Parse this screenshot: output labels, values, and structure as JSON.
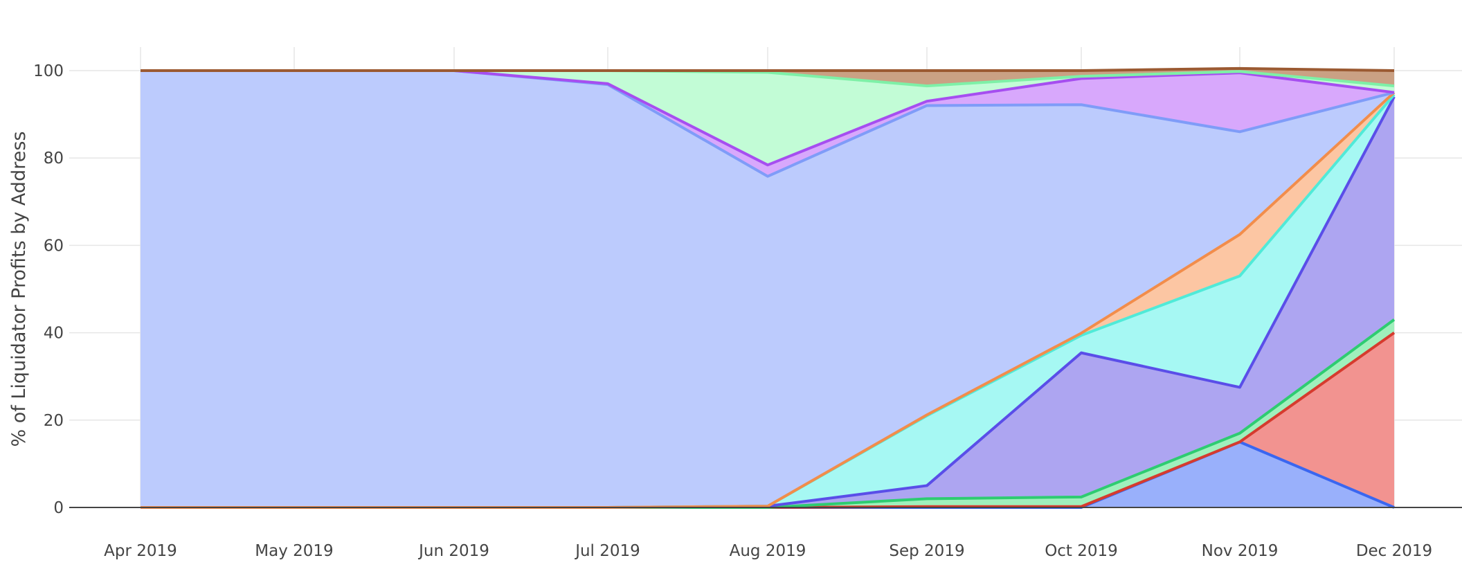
{
  "chart_data": {
    "type": "area",
    "stacked": true,
    "normalized_percent": true,
    "title": "",
    "xlabel": "",
    "ylabel": "% of Liquidator Profits by Address",
    "x": [
      "Apr 2019",
      "May 2019",
      "Jun 2019",
      "Jul 2019",
      "Aug 2019",
      "Sep 2019",
      "Oct 2019",
      "Nov 2019",
      "Dec 2019"
    ],
    "ylim": [
      0,
      100
    ],
    "yticks": [
      0,
      20,
      40,
      60,
      80,
      100
    ],
    "grid": true,
    "legend": "none",
    "series": [
      {
        "values": [
          0,
          0,
          0,
          0,
          0,
          0,
          0,
          15,
          0
        ],
        "line_color": "#3a66f0",
        "fill_color": "#99b0fb"
      },
      {
        "values": [
          0,
          0,
          0,
          0,
          0,
          0.2,
          0.2,
          0,
          40
        ],
        "line_color": "#d63b2e",
        "fill_color": "#f29390"
      },
      {
        "values": [
          0,
          0,
          0,
          0,
          0,
          1.8,
          2.2,
          2,
          3
        ],
        "line_color": "#2ecc71",
        "fill_color": "#9ff0bc"
      },
      {
        "values": [
          0,
          0,
          0,
          0,
          0.3,
          3,
          33,
          10.5,
          51
        ],
        "line_color": "#5a4ee8",
        "fill_color": "#ada5f1"
      },
      {
        "values": [
          0,
          0,
          0,
          0,
          0,
          16,
          4,
          25.5,
          0.5
        ],
        "line_color": "#50ead8",
        "fill_color": "#a6f8f3"
      },
      {
        "values": [
          0,
          0,
          0,
          0,
          0,
          0.2,
          0.5,
          9.5,
          0.5
        ],
        "line_color": "#f28d4b",
        "fill_color": "#fcc6a3"
      },
      {
        "values": [
          100,
          100,
          100,
          96.8,
          75.5,
          70.8,
          52.3,
          23.5,
          0
        ],
        "line_color": "#7f9cf8",
        "fill_color": "#bccbfd"
      },
      {
        "values": [
          0,
          0,
          0,
          0.2,
          2.6,
          1,
          6,
          13.5,
          0
        ],
        "line_color": "#a64ef0",
        "fill_color": "#d8a8fc"
      },
      {
        "values": [
          0,
          0,
          0,
          3,
          21.2,
          3.5,
          0.5,
          0.3,
          1.5
        ],
        "line_color": "#7ef0a7",
        "fill_color": "#c2fcd6"
      },
      {
        "values": [
          0,
          0,
          0,
          0,
          0.4,
          3.5,
          1.3,
          0.7,
          3.5
        ],
        "line_color": "#9b5a32",
        "fill_color": "#caa184"
      }
    ]
  }
}
